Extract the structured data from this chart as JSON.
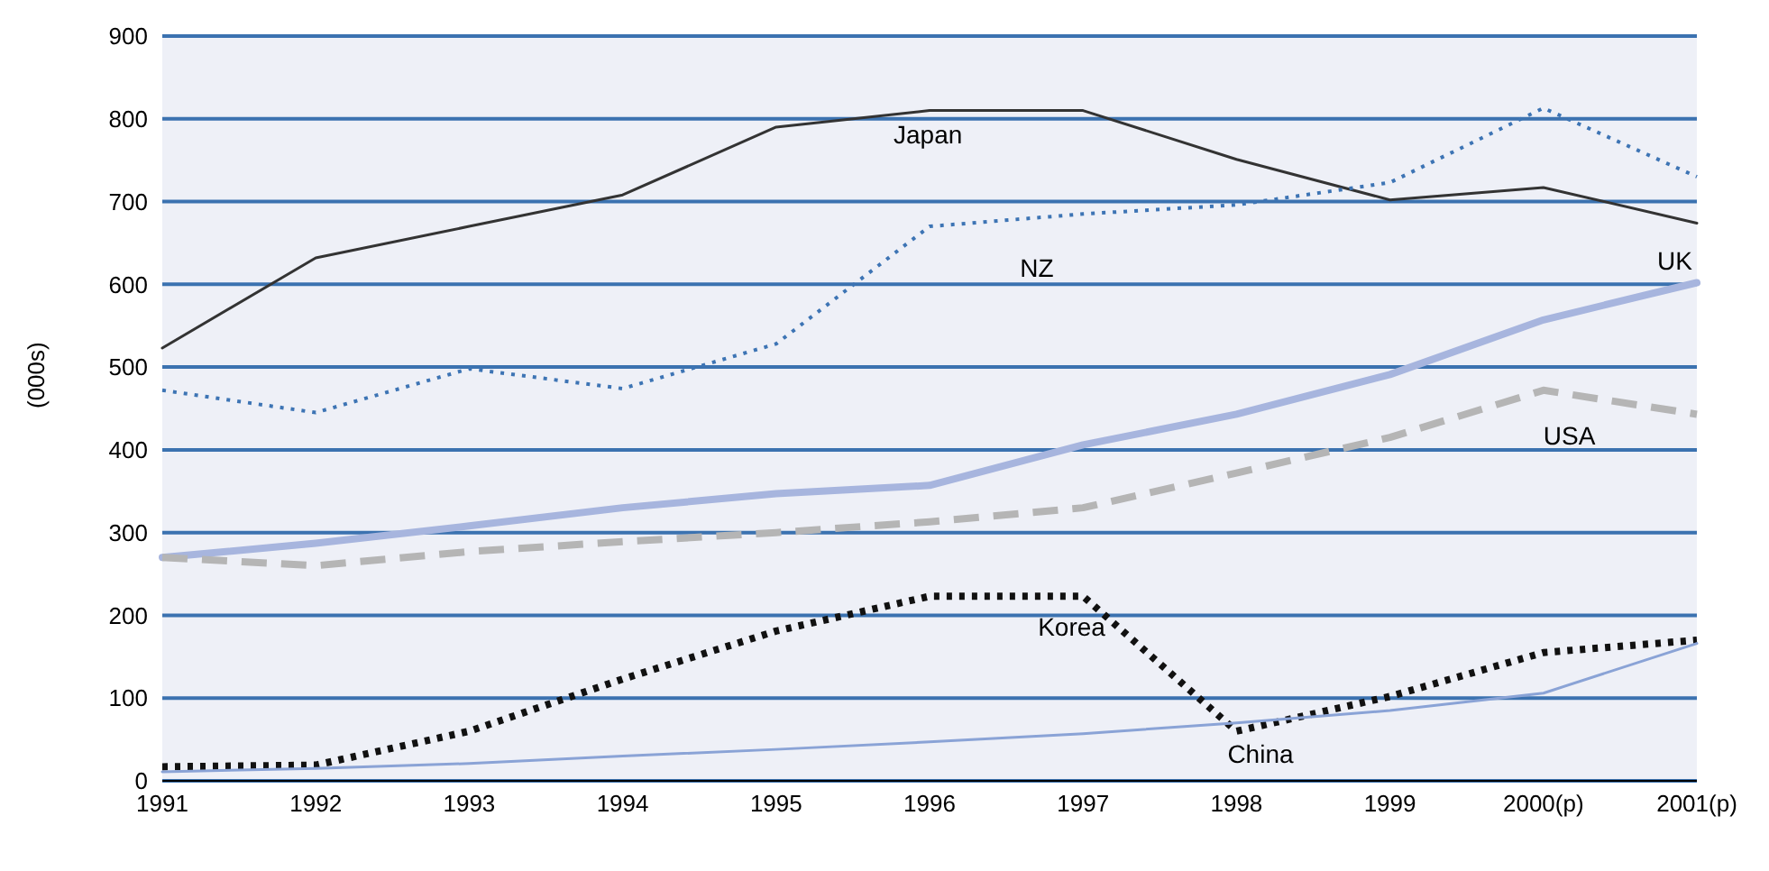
{
  "chart_data": {
    "type": "line",
    "ylabel": "(000s)",
    "categories": [
      "1991",
      "1992",
      "1993",
      "1994",
      "1995",
      "1996",
      "1997",
      "1998",
      "1999",
      "2000(p)",
      "2001(p)"
    ],
    "ylim": [
      0,
      900
    ],
    "yticks": [
      0,
      100,
      200,
      300,
      400,
      500,
      600,
      700,
      800,
      900
    ],
    "grid": "y",
    "legend": false,
    "marker": "none",
    "series": [
      {
        "name": "Japan",
        "color": "#333333",
        "line_style": "solid",
        "values": [
          523,
          632,
          670,
          708,
          790,
          810,
          810,
          751,
          702,
          717,
          674
        ]
      },
      {
        "name": "NZ",
        "color": "#3d74b4",
        "line_style": "dotted",
        "values": [
          472,
          445,
          498,
          474,
          528,
          670,
          685,
          696,
          723,
          813,
          730
        ]
      },
      {
        "name": "UK",
        "color": "#a7b5de",
        "line_style": "solid",
        "values": [
          270,
          287,
          308,
          330,
          347,
          357,
          406,
          443,
          491,
          557,
          602
        ]
      },
      {
        "name": "USA",
        "color": "#b5b5b5",
        "line_style": "dashed",
        "values": [
          270,
          260,
          277,
          289,
          300,
          313,
          330,
          372,
          415,
          472,
          443
        ]
      },
      {
        "name": "Korea",
        "color": "#111111",
        "line_style": "dotted",
        "values": [
          17,
          19,
          60,
          123,
          181,
          223,
          223,
          60,
          102,
          155,
          170
        ]
      },
      {
        "name": "China",
        "color": "#8aa3d6",
        "line_style": "solid",
        "values": [
          11,
          15,
          21,
          30,
          38,
          47,
          57,
          70,
          85,
          106,
          166
        ]
      }
    ]
  }
}
